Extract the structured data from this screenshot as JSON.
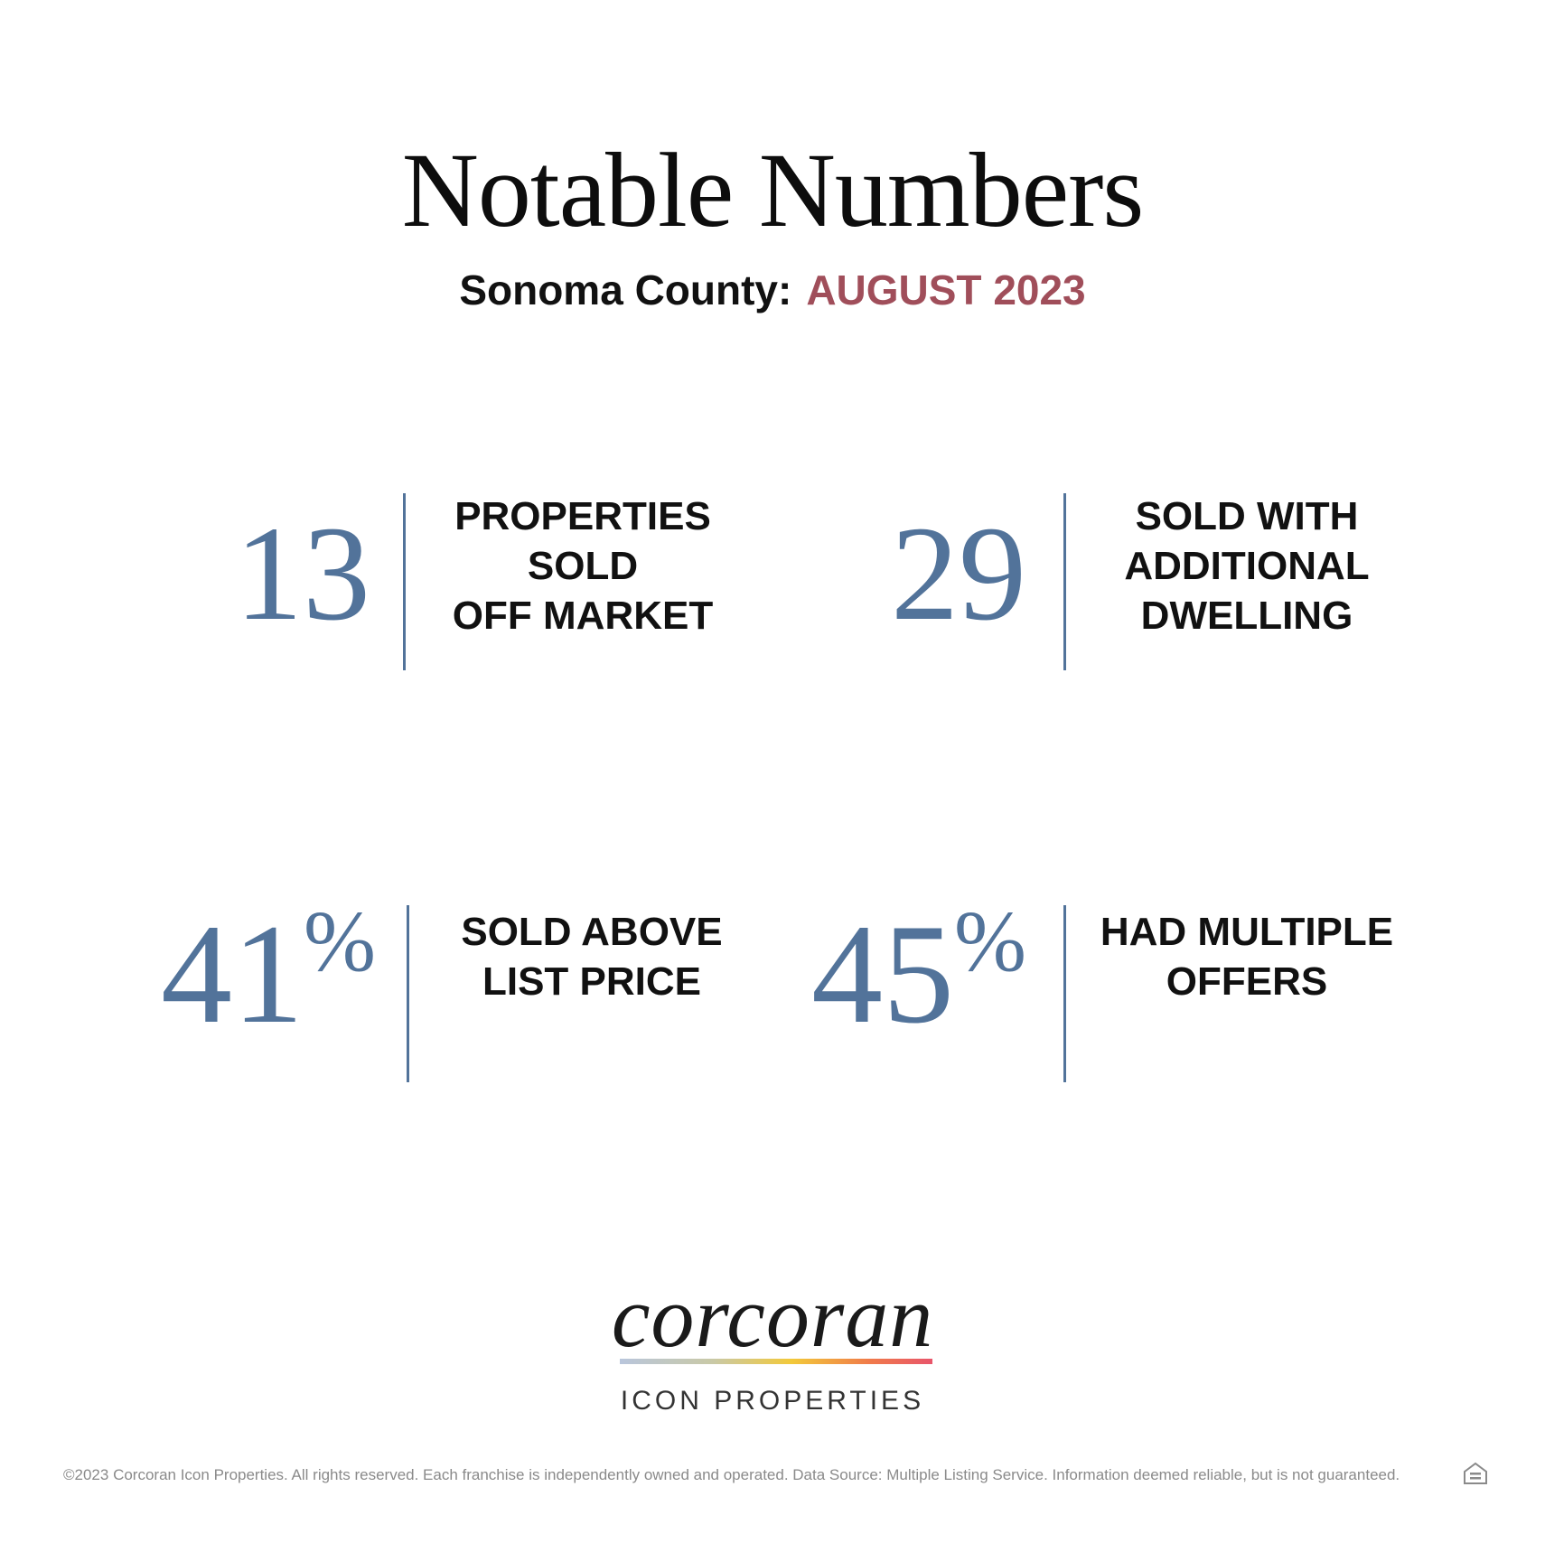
{
  "header": {
    "title": "Notable Numbers",
    "county": "Sonoma County:",
    "period": "AUGUST 2023"
  },
  "stats": [
    {
      "value": "13",
      "suffix": "",
      "label_lines": [
        "PROPERTIES",
        "SOLD",
        "OFF MARKET"
      ]
    },
    {
      "value": "29",
      "suffix": "",
      "label_lines": [
        "SOLD WITH",
        "ADDITIONAL",
        "DWELLING"
      ]
    },
    {
      "value": "41",
      "suffix": "%",
      "label_lines": [
        "SOLD ABOVE",
        "LIST PRICE"
      ]
    },
    {
      "value": "45",
      "suffix": "%",
      "label_lines": [
        "HAD MULTIPLE",
        "OFFERS"
      ]
    }
  ],
  "logo": {
    "wordmark": "corcoran",
    "subtitle": "ICON PROPERTIES"
  },
  "footer": {
    "disclaimer": "©2023 Corcoran Icon Properties. All rights reserved. Each franchise is independently owned and operated. Data Source: Multiple Listing Service. Information deemed reliable, but is not guaranteed.",
    "icon": "equal-housing-icon"
  },
  "colors": {
    "accent_blue": "#52739a",
    "accent_red": "#a04e5a"
  }
}
